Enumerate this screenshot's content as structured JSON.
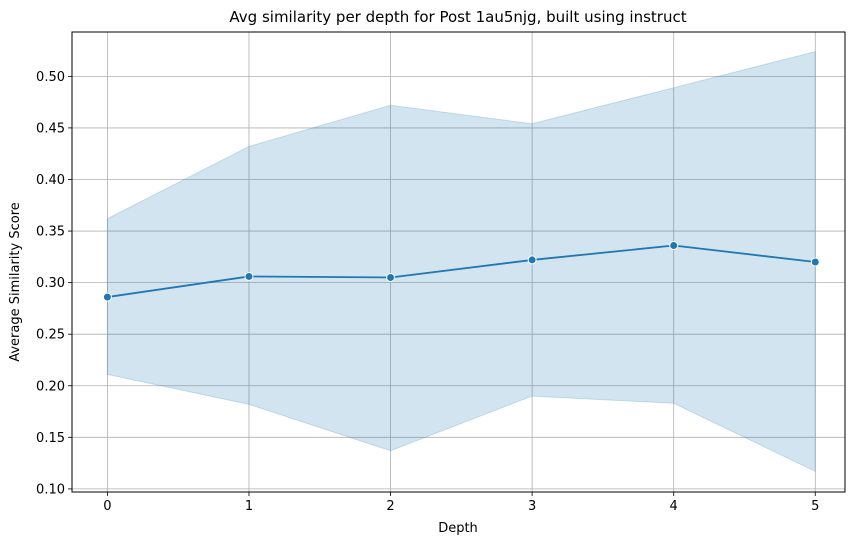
{
  "chart_data": {
    "type": "line",
    "title": "Avg similarity per depth for Post 1au5njg, built using instruct",
    "xlabel": "Depth",
    "ylabel": "Average Similarity Score",
    "x": [
      0,
      1,
      2,
      3,
      4,
      5
    ],
    "xlim": [
      -0.25,
      5.21
    ],
    "ylim": [
      0.097,
      0.543
    ],
    "xticks": [
      "0",
      "1",
      "2",
      "3",
      "4",
      "5"
    ],
    "yticks": [
      "0.10",
      "0.15",
      "0.20",
      "0.25",
      "0.30",
      "0.35",
      "0.40",
      "0.45",
      "0.50"
    ],
    "grid": true,
    "series": [
      {
        "values": [
          0.286,
          0.306,
          0.305,
          0.322,
          0.336,
          0.32
        ],
        "ci_upper": [
          0.362,
          0.432,
          0.472,
          0.454,
          0.489,
          0.524
        ],
        "ci_lower": [
          0.211,
          0.182,
          0.137,
          0.19,
          0.183,
          0.117
        ],
        "color": "#1f77b4",
        "band_color": "#1f77b4",
        "marker": "circle"
      }
    ]
  }
}
